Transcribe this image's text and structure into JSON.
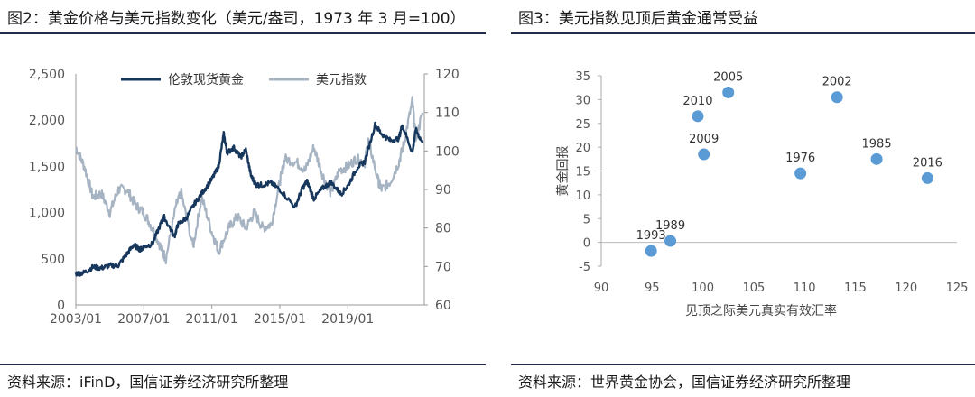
{
  "left_panel": {
    "title": "图2：黄金价格与美元指数变化（美元/盎司，1973 年 3 月=100）",
    "source": "资料来源：iFinD，国信证券经济研究所整理"
  },
  "right_panel": {
    "title": "图3：美元指数见顶后黄金通常受益",
    "source": "资料来源：世界黄金协会，国信证券经济研究所整理"
  },
  "colors": {
    "gold": "#16365c",
    "usd": "#a6b3c2",
    "scatter": "#5b9bd5",
    "rule": "#1f2d4a"
  },
  "chart_data": [
    {
      "type": "line",
      "x_tick_labels": [
        "2003/01",
        "2007/01",
        "2011/01",
        "2015/01",
        "2019/01"
      ],
      "x_range": [
        2003.0,
        2023.5
      ],
      "left_axis": {
        "ylim": [
          0,
          2500
        ],
        "tick_labels": [
          "0",
          "500",
          "1,000",
          "1,500",
          "2,000",
          "2,500"
        ]
      },
      "right_axis": {
        "ylim": [
          60,
          120
        ],
        "tick_labels": [
          "60",
          "70",
          "80",
          "90",
          "100",
          "110",
          "120"
        ]
      },
      "legend_position": "top",
      "series": [
        {
          "name": "伦敦现货黄金",
          "axis": "left",
          "x": [
            2003.0,
            2003.5,
            2004.0,
            2004.5,
            2005.0,
            2005.5,
            2006.0,
            2006.4,
            2006.8,
            2007.0,
            2007.5,
            2008.0,
            2008.2,
            2008.8,
            2009.0,
            2009.5,
            2010.0,
            2010.5,
            2011.0,
            2011.4,
            2011.7,
            2011.9,
            2012.3,
            2012.7,
            2013.0,
            2013.3,
            2013.6,
            2014.0,
            2014.5,
            2015.0,
            2015.9,
            2016.3,
            2016.6,
            2017.0,
            2017.5,
            2018.0,
            2018.6,
            2019.0,
            2019.6,
            2020.0,
            2020.6,
            2021.0,
            2021.5,
            2022.0,
            2022.2,
            2022.8,
            2023.0,
            2023.4
          ],
          "values": [
            340,
            350,
            410,
            400,
            425,
            430,
            550,
            650,
            600,
            630,
            660,
            880,
            950,
            740,
            870,
            940,
            1100,
            1230,
            1360,
            1500,
            1850,
            1650,
            1700,
            1600,
            1680,
            1400,
            1300,
            1300,
            1320,
            1250,
            1060,
            1250,
            1340,
            1150,
            1260,
            1330,
            1200,
            1290,
            1500,
            1550,
            1950,
            1850,
            1780,
            1800,
            1950,
            1650,
            1900,
            1750
          ]
        },
        {
          "name": "美元指数",
          "axis": "right",
          "x": [
            2003.0,
            2003.5,
            2004.0,
            2004.5,
            2005.0,
            2005.5,
            2006.0,
            2006.5,
            2007.0,
            2007.5,
            2008.0,
            2008.3,
            2008.9,
            2009.2,
            2009.9,
            2010.4,
            2011.0,
            2011.4,
            2012.0,
            2012.5,
            2013.0,
            2013.5,
            2014.0,
            2014.5,
            2015.0,
            2015.3,
            2016.0,
            2016.5,
            2017.0,
            2017.5,
            2018.0,
            2018.5,
            2019.0,
            2019.5,
            2020.0,
            2020.2,
            2020.8,
            2021.0,
            2021.5,
            2022.0,
            2022.3,
            2022.8,
            2023.0,
            2023.4
          ],
          "values": [
            101,
            96,
            88,
            89,
            84,
            90,
            90,
            86,
            84,
            80,
            75,
            72,
            86,
            89,
            75,
            88,
            79,
            74,
            80,
            83,
            80,
            84,
            80,
            81,
            92,
            98,
            97,
            95,
            101,
            94,
            89,
            95,
            96,
            98,
            97,
            103,
            92,
            90,
            92,
            97,
            102,
            113,
            103,
            110
          ]
        }
      ]
    },
    {
      "type": "scatter",
      "xlabel": "见顶之际美元真实有效汇率",
      "ylabel": "黄金回报",
      "xlim": [
        90,
        125
      ],
      "ylim": [
        -5,
        35
      ],
      "x_tick_labels": [
        "90",
        "95",
        "100",
        "105",
        "110",
        "115",
        "120",
        "125"
      ],
      "y_tick_labels": [
        "-5",
        "0",
        "5",
        "10",
        "15",
        "20",
        "25",
        "30",
        "35"
      ],
      "points": [
        {
          "label": "1993",
          "x": 94.9,
          "y": -1.8
        },
        {
          "label": "1989",
          "x": 96.8,
          "y": 0.3
        },
        {
          "label": "2010",
          "x": 99.5,
          "y": 26.5
        },
        {
          "label": "2005",
          "x": 102.5,
          "y": 31.5
        },
        {
          "label": "2009",
          "x": 100.1,
          "y": 18.5
        },
        {
          "label": "2002",
          "x": 113.2,
          "y": 30.5
        },
        {
          "label": "1976",
          "x": 109.6,
          "y": 14.5
        },
        {
          "label": "1985",
          "x": 117.1,
          "y": 17.5
        },
        {
          "label": "2016",
          "x": 122.1,
          "y": 13.5
        }
      ]
    }
  ]
}
